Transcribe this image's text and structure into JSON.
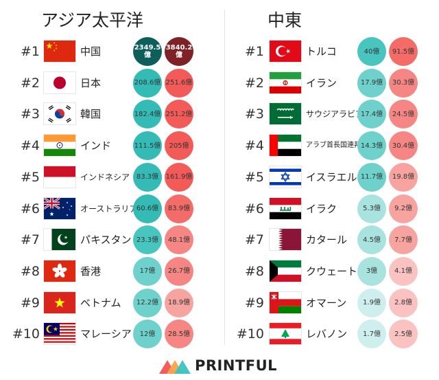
{
  "logo": {
    "icon": "printful-mountain-icon",
    "text": "PRINTFUL",
    "colors": [
      "#F25D5A",
      "#F8A24B",
      "#3CC3C0"
    ]
  },
  "chart_data": [
    {
      "type": "table",
      "title": "アジア太平洋",
      "unit": "億",
      "columns": [
        "rank",
        "country",
        "value_a",
        "value_b"
      ],
      "rows": [
        {
          "rank": "#1",
          "country": "中国",
          "flag": "flag-china",
          "a": "2349.5\n億",
          "b": "3840.2\n億",
          "a_value": 2349.5,
          "b_value": 3840.2
        },
        {
          "rank": "#2",
          "country": "日本",
          "flag": "flag-japan",
          "a": "208.6億",
          "b": "251.6億",
          "a_value": 208.6,
          "b_value": 251.6
        },
        {
          "rank": "#3",
          "country": "韓国",
          "flag": "flag-south-korea",
          "a": "182.4億",
          "b": "251.2億",
          "a_value": 182.4,
          "b_value": 251.2
        },
        {
          "rank": "#4",
          "country": "インド",
          "flag": "flag-india",
          "a": "111.5億",
          "b": "205億",
          "a_value": 111.5,
          "b_value": 205
        },
        {
          "rank": "#5",
          "country": "インドネシア",
          "flag": "flag-indonesia",
          "a": "83.3億",
          "b": "161.9億",
          "a_value": 83.3,
          "b_value": 161.9
        },
        {
          "rank": "#6",
          "country": "オーストラリア",
          "flag": "flag-australia",
          "a": "60.6億",
          "b": "83.9億",
          "a_value": 60.6,
          "b_value": 83.9
        },
        {
          "rank": "#7",
          "country": "パキスタン",
          "flag": "flag-pakistan",
          "a": "23.3億",
          "b": "48.1億",
          "a_value": 23.3,
          "b_value": 48.1
        },
        {
          "rank": "#8",
          "country": "香港",
          "flag": "flag-hong-kong",
          "a": "17億",
          "b": "26.7億",
          "a_value": 17,
          "b_value": 26.7
        },
        {
          "rank": "#9",
          "country": "ベトナム",
          "flag": "flag-vietnam",
          "a": "12.2億",
          "b": "18.9億",
          "a_value": 12.2,
          "b_value": 18.9
        },
        {
          "rank": "#10",
          "country": "マレーシア",
          "flag": "flag-malaysia",
          "a": "12億",
          "b": "28.5億",
          "a_value": 12,
          "b_value": 28.5
        }
      ]
    },
    {
      "type": "table",
      "title": "中東",
      "unit": "億",
      "columns": [
        "rank",
        "country",
        "value_a",
        "value_b"
      ],
      "rows": [
        {
          "rank": "#1",
          "country": "トルコ",
          "flag": "flag-turkey",
          "a": "40億",
          "b": "91.5億",
          "a_value": 40,
          "b_value": 91.5
        },
        {
          "rank": "#2",
          "country": "イラン",
          "flag": "flag-iran",
          "a": "17.9億",
          "b": "30.3億",
          "a_value": 17.9,
          "b_value": 30.3
        },
        {
          "rank": "#3",
          "country": "サウジアラビア",
          "flag": "flag-saudi-arabia",
          "a": "17.4億",
          "b": "24.5億",
          "a_value": 17.4,
          "b_value": 24.5
        },
        {
          "rank": "#4",
          "country": "アラブ首長国連邦",
          "flag": "flag-uae",
          "a": "14.3億",
          "b": "30.4億",
          "a_value": 14.3,
          "b_value": 30.4
        },
        {
          "rank": "#5",
          "country": "イスラエル",
          "flag": "flag-israel",
          "a": "11.7億",
          "b": "19.8億",
          "a_value": 11.7,
          "b_value": 19.8
        },
        {
          "rank": "#6",
          "country": "イラク",
          "flag": "flag-iraq",
          "a": "5.3億",
          "b": "9.2億",
          "a_value": 5.3,
          "b_value": 9.2
        },
        {
          "rank": "#7",
          "country": "カタール",
          "flag": "flag-qatar",
          "a": "4.5億",
          "b": "7.7億",
          "a_value": 4.5,
          "b_value": 7.7
        },
        {
          "rank": "#8",
          "country": "クウェート",
          "flag": "flag-kuwait",
          "a": "3億",
          "b": "4.1億",
          "a_value": 3,
          "b_value": 4.1
        },
        {
          "rank": "#9",
          "country": "オマーン",
          "flag": "flag-oman",
          "a": "1.9億",
          "b": "2.8億",
          "a_value": 1.9,
          "b_value": 2.8
        },
        {
          "rank": "#10",
          "country": "レバノン",
          "flag": "flag-lebanon",
          "a": "1.7億",
          "b": "2.5億",
          "a_value": 1.7,
          "b_value": 2.5
        }
      ]
    }
  ],
  "colors": {
    "teal_scale": [
      "#0E5E5B",
      "#35BBB5",
      "#48C5BF",
      "#6FD1CC",
      "#A9E3E0",
      "#CFEFEE"
    ],
    "red_scale": [
      "#7E2226",
      "#F25B57",
      "#F46C68",
      "#F58683",
      "#F7A3A0",
      "#FAC3C1"
    ],
    "divider": "#E2E2E2"
  }
}
